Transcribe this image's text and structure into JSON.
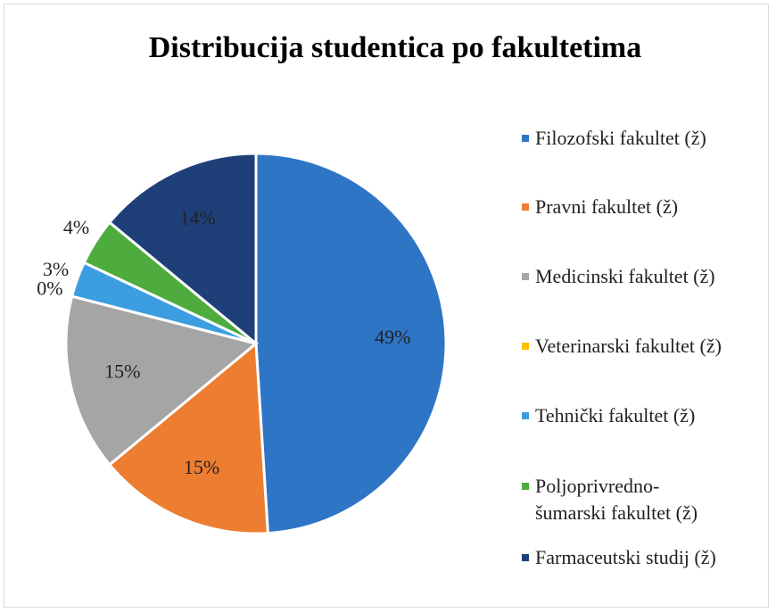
{
  "chart_data": {
    "type": "pie",
    "title": "Distribucija studentica po fakultetima",
    "categories": [
      "Filozofski fakultet (ž)",
      "Pravni fakultet (ž)",
      "Medicinski fakultet (ž)",
      "Veterinarski fakultet (ž)",
      "Tehnički fakultet (ž)",
      "Poljoprivredno-šumarski fakultet (ž)",
      "Farmaceutski studij (ž)"
    ],
    "values": [
      49,
      15,
      15,
      0,
      3,
      4,
      14
    ],
    "value_labels": [
      "49%",
      "15%",
      "15%",
      "0%",
      "3%",
      "4%",
      "14%"
    ],
    "colors": [
      "#2e75c6",
      "#ed7d31",
      "#a5a5a5",
      "#ffc000",
      "#3c9ee0",
      "#4eab3e",
      "#1f3f79"
    ],
    "legend": "right"
  }
}
